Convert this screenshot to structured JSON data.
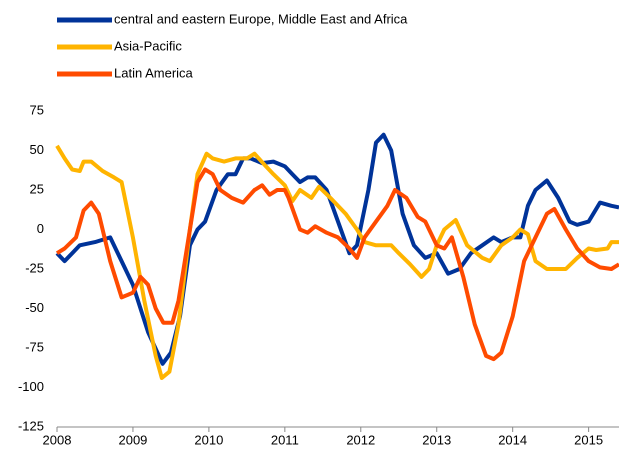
{
  "chart_data": {
    "type": "line",
    "xlim": [
      2008,
      2015.4
    ],
    "xticks": [
      2008,
      2009,
      2010,
      2011,
      2012,
      2013,
      2014,
      2015
    ],
    "ylim": [
      -125,
      75
    ],
    "yticks": [
      -125,
      -100,
      -75,
      -50,
      -25,
      0,
      25,
      50,
      75
    ],
    "grid": false,
    "legend": "top-left",
    "series": [
      {
        "name": "central and eastern Europe, Middle East and Africa",
        "color": "#003399",
        "x": [
          2008.0,
          2008.1,
          2008.2,
          2008.3,
          2008.5,
          2008.7,
          2008.8,
          2009.0,
          2009.2,
          2009.39,
          2009.5,
          2009.62,
          2009.75,
          2009.85,
          2009.95,
          2010.1,
          2010.25,
          2010.35,
          2010.45,
          2010.55,
          2010.7,
          2010.85,
          2011.0,
          2011.1,
          2011.2,
          2011.3,
          2011.4,
          2011.55,
          2011.7,
          2011.85,
          2011.95,
          2012.1,
          2012.2,
          2012.3,
          2012.4,
          2012.55,
          2012.7,
          2012.85,
          2013.0,
          2013.15,
          2013.3,
          2013.45,
          2013.6,
          2013.75,
          2013.85,
          2014.0,
          2014.1,
          2014.2,
          2014.3,
          2014.45,
          2014.6,
          2014.75,
          2014.85,
          2015.0,
          2015.15,
          2015.3,
          2015.4
        ],
        "values": [
          -15,
          -20,
          -15,
          -10,
          -8,
          -5,
          -15,
          -35,
          -65,
          -85,
          -78,
          -55,
          -10,
          0,
          5,
          25,
          35,
          35,
          45,
          45,
          42,
          43,
          40,
          35,
          30,
          33,
          33,
          25,
          5,
          -15,
          -10,
          25,
          55,
          60,
          50,
          10,
          -10,
          -18,
          -15,
          -28,
          -25,
          -15,
          -10,
          -5,
          -8,
          -5,
          -5,
          15,
          25,
          31,
          20,
          5,
          3,
          5,
          17,
          15,
          14
        ]
      },
      {
        "name": "Asia-Pacific",
        "color": "#ffb400",
        "x": [
          2008.0,
          2008.1,
          2008.2,
          2008.3,
          2008.35,
          2008.45,
          2008.6,
          2008.75,
          2008.85,
          2009.0,
          2009.15,
          2009.3,
          2009.38,
          2009.48,
          2009.6,
          2009.75,
          2009.85,
          2009.97,
          2010.05,
          2010.2,
          2010.35,
          2010.5,
          2010.6,
          2010.75,
          2010.85,
          2011.0,
          2011.1,
          2011.2,
          2011.35,
          2011.45,
          2011.6,
          2011.8,
          2011.95,
          2012.05,
          2012.2,
          2012.4,
          2012.5,
          2012.65,
          2012.8,
          2012.9,
          2013.0,
          2013.1,
          2013.25,
          2013.4,
          2013.6,
          2013.7,
          2013.85,
          2014.0,
          2014.1,
          2014.2,
          2014.3,
          2014.45,
          2014.55,
          2014.7,
          2014.85,
          2015.0,
          2015.1,
          2015.25,
          2015.3,
          2015.4
        ],
        "values": [
          53,
          45,
          38,
          37,
          43,
          43,
          37,
          33,
          30,
          -5,
          -45,
          -80,
          -94,
          -90,
          -60,
          0,
          35,
          48,
          45,
          43,
          45,
          45,
          48,
          40,
          35,
          28,
          18,
          25,
          20,
          27,
          20,
          10,
          0,
          -8,
          -10,
          -10,
          -15,
          -22,
          -30,
          -25,
          -10,
          0,
          6,
          -10,
          -18,
          -20,
          -10,
          -5,
          0,
          -3,
          -20,
          -25,
          -25,
          -25,
          -18,
          -12,
          -13,
          -12,
          -8,
          -8
        ]
      },
      {
        "name": "Latin America",
        "color": "#ff4b00",
        "x": [
          2008.0,
          2008.1,
          2008.25,
          2008.35,
          2008.45,
          2008.55,
          2008.7,
          2008.85,
          2009.0,
          2009.1,
          2009.2,
          2009.3,
          2009.4,
          2009.52,
          2009.6,
          2009.75,
          2009.85,
          2009.95,
          2010.05,
          2010.15,
          2010.3,
          2010.45,
          2010.6,
          2010.7,
          2010.8,
          2010.9,
          2011.0,
          2011.05,
          2011.2,
          2011.3,
          2011.4,
          2011.55,
          2011.7,
          2011.85,
          2011.95,
          2012.05,
          2012.2,
          2012.35,
          2012.45,
          2012.6,
          2012.75,
          2012.85,
          2013.0,
          2013.1,
          2013.2,
          2013.35,
          2013.5,
          2013.65,
          2013.75,
          2013.85,
          2014.0,
          2014.15,
          2014.3,
          2014.45,
          2014.55,
          2014.7,
          2014.85,
          2015.0,
          2015.15,
          2015.3,
          2015.4
        ],
        "values": [
          -15,
          -12,
          -5,
          12,
          17,
          10,
          -20,
          -43,
          -40,
          -30,
          -35,
          -50,
          -59,
          -59,
          -45,
          0,
          30,
          38,
          35,
          25,
          20,
          17,
          25,
          28,
          22,
          25,
          25,
          20,
          0,
          -2,
          2,
          -2,
          -5,
          -12,
          -18,
          -5,
          5,
          15,
          25,
          20,
          8,
          5,
          -10,
          -12,
          -5,
          -30,
          -60,
          -80,
          -82,
          -78,
          -55,
          -20,
          -5,
          10,
          13,
          0,
          -12,
          -20,
          -24,
          -25,
          -22
        ]
      }
    ]
  }
}
